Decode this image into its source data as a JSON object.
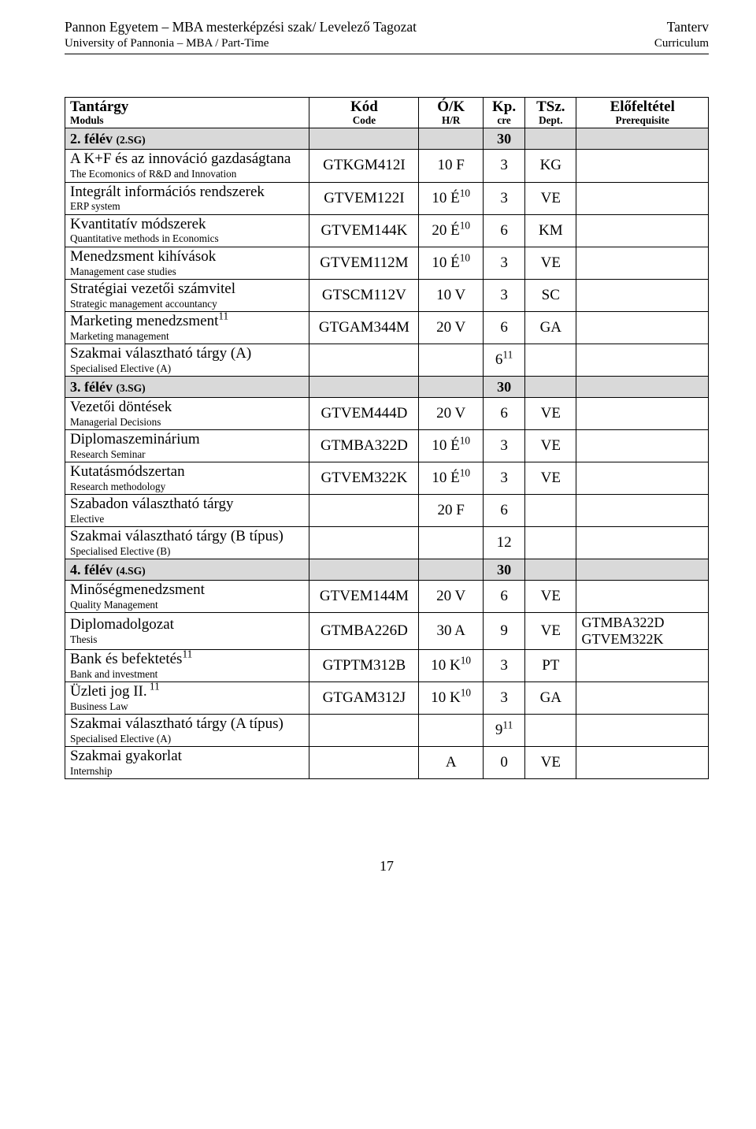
{
  "header": {
    "left_hu": "Pannon Egyetem – MBA mesterképzési szak/ Levelező Tagozat",
    "right_hu": "Tanterv",
    "left_en": "University of Pannonia – MBA / Part-Time",
    "right_en": "Curriculum"
  },
  "table": {
    "headers": [
      {
        "hu": "Tantárgy",
        "en": "Moduls"
      },
      {
        "hu": "Kód",
        "en": "Code"
      },
      {
        "hu": "Ó/K",
        "en": "H/R"
      },
      {
        "hu": "Kp.",
        "en": "cre"
      },
      {
        "hu": "TSz.",
        "en": "Dept."
      },
      {
        "hu": "Előfeltétel",
        "en": "Prerequisite"
      }
    ],
    "semesters": [
      {
        "label": "2. félév (2.SG)",
        "credits": "30",
        "rows": [
          {
            "hu": "A K+F és az innováció gazdaságtana",
            "en": "The Ecomonics of R&D and Innovation",
            "code": "GTKGM412I",
            "hr": "10 F",
            "cre": "3",
            "dept": "KG",
            "prereq": ""
          },
          {
            "hu": "Integrált információs rendszerek",
            "en": "ERP system",
            "code": "GTVEM122I",
            "hr_html": "10 É<sup>10</sup>",
            "cre": "3",
            "dept": "VE",
            "prereq": ""
          },
          {
            "hu": "Kvantitatív módszerek",
            "en": "Quantitative methods in Economics",
            "code": "GTVEM144K",
            "hr_html": "20 É<sup>10</sup>",
            "cre": "6",
            "dept": "KM",
            "prereq": ""
          },
          {
            "hu": "Menedzsment kihívások",
            "en": "Management case studies",
            "code": "GTVEM112M",
            "hr_html": "10 É<sup>10</sup>",
            "cre": "3",
            "dept": "VE",
            "prereq": ""
          },
          {
            "hu": "Stratégiai vezetői számvitel",
            "en": "Strategic management accountancy",
            "code": "GTSCM112V",
            "hr": "10 V",
            "cre": "3",
            "dept": "SC",
            "prereq": ""
          },
          {
            "hu_html": "Marketing menedzsment<sup>11</sup>",
            "en": "Marketing management",
            "code": "GTGAM344M",
            "hr": "20 V",
            "cre": "6",
            "dept": "GA",
            "prereq": ""
          },
          {
            "hu": "Szakmai választható tárgy (A)",
            "en": "Specialised Elective (A)",
            "code": "",
            "hr": "",
            "cre_html": "6<sup>11</sup>",
            "dept": "",
            "prereq": "",
            "extra_top_border": true
          }
        ]
      },
      {
        "label": "3. félév (3.SG)",
        "credits": "30",
        "rows": [
          {
            "hu": "Vezetői döntések",
            "en": "Managerial Decisions",
            "code": "GTVEM444D",
            "hr": "20 V",
            "cre": "6",
            "dept": "VE",
            "prereq": ""
          },
          {
            "hu": "Diplomaszeminárium",
            "en": "Research Seminar",
            "code": "GTMBA322D",
            "hr_html": "10 É<sup>10</sup>",
            "cre": "3",
            "dept": "VE",
            "prereq": ""
          },
          {
            "hu": "Kutatásmódszertan",
            "en": "Research methodology",
            "code": "GTVEM322K",
            "hr_html": "10 É<sup>10</sup>",
            "cre": "3",
            "dept": "VE",
            "prereq": ""
          },
          {
            "hu": "Szabadon választható tárgy",
            "en": "Elective",
            "code": "",
            "hr": "20 F",
            "cre": "6",
            "dept": "",
            "prereq": ""
          },
          {
            "hu": "Szakmai választható tárgy (B típus)",
            "en": "Specialised Elective (B)",
            "code": "",
            "hr": "",
            "cre": "12",
            "dept": "",
            "prereq": ""
          }
        ]
      },
      {
        "label": "4. félév (4.SG)",
        "credits": "30",
        "rows": [
          {
            "hu": "Minőségmenedzsment",
            "en": "Quality Management",
            "code": "GTVEM144M",
            "hr": "20 V",
            "cre": "6",
            "dept": "VE",
            "prereq": ""
          },
          {
            "hu": "Diplomadolgozat",
            "en": "Thesis",
            "code": "GTMBA226D",
            "hr": "30 A",
            "cre": "9",
            "dept": "VE",
            "prereq_html": "GTMBA322D<br>GTVEM322K"
          },
          {
            "hu_html": "Bank és befektetés<sup>11</sup>",
            "en": "Bank and investment",
            "code": "GTPTM312B",
            "hr_html": "10 K<sup>10</sup>",
            "cre": "3",
            "dept": "PT",
            "prereq": ""
          },
          {
            "hu_html": "Üzleti jog II.<sup> 11</sup>",
            "en": "Business Law",
            "code": "GTGAM312J",
            "hr_html": "10 K<sup>10</sup>",
            "cre": "3",
            "dept": "GA",
            "prereq": ""
          },
          {
            "hu": "Szakmai választható tárgy (A típus)",
            "en": "Specialised Elective (A)",
            "code": "",
            "hr": "",
            "cre_html": "9<sup>11</sup>",
            "dept": "",
            "prereq": "",
            "extra_top_border": true
          },
          {
            "hu": "Szakmai gyakorlat",
            "en": "Internship",
            "code": "",
            "hr": "A",
            "cre": "0",
            "dept": "VE",
            "prereq": ""
          }
        ]
      }
    ]
  },
  "page_number": "17"
}
